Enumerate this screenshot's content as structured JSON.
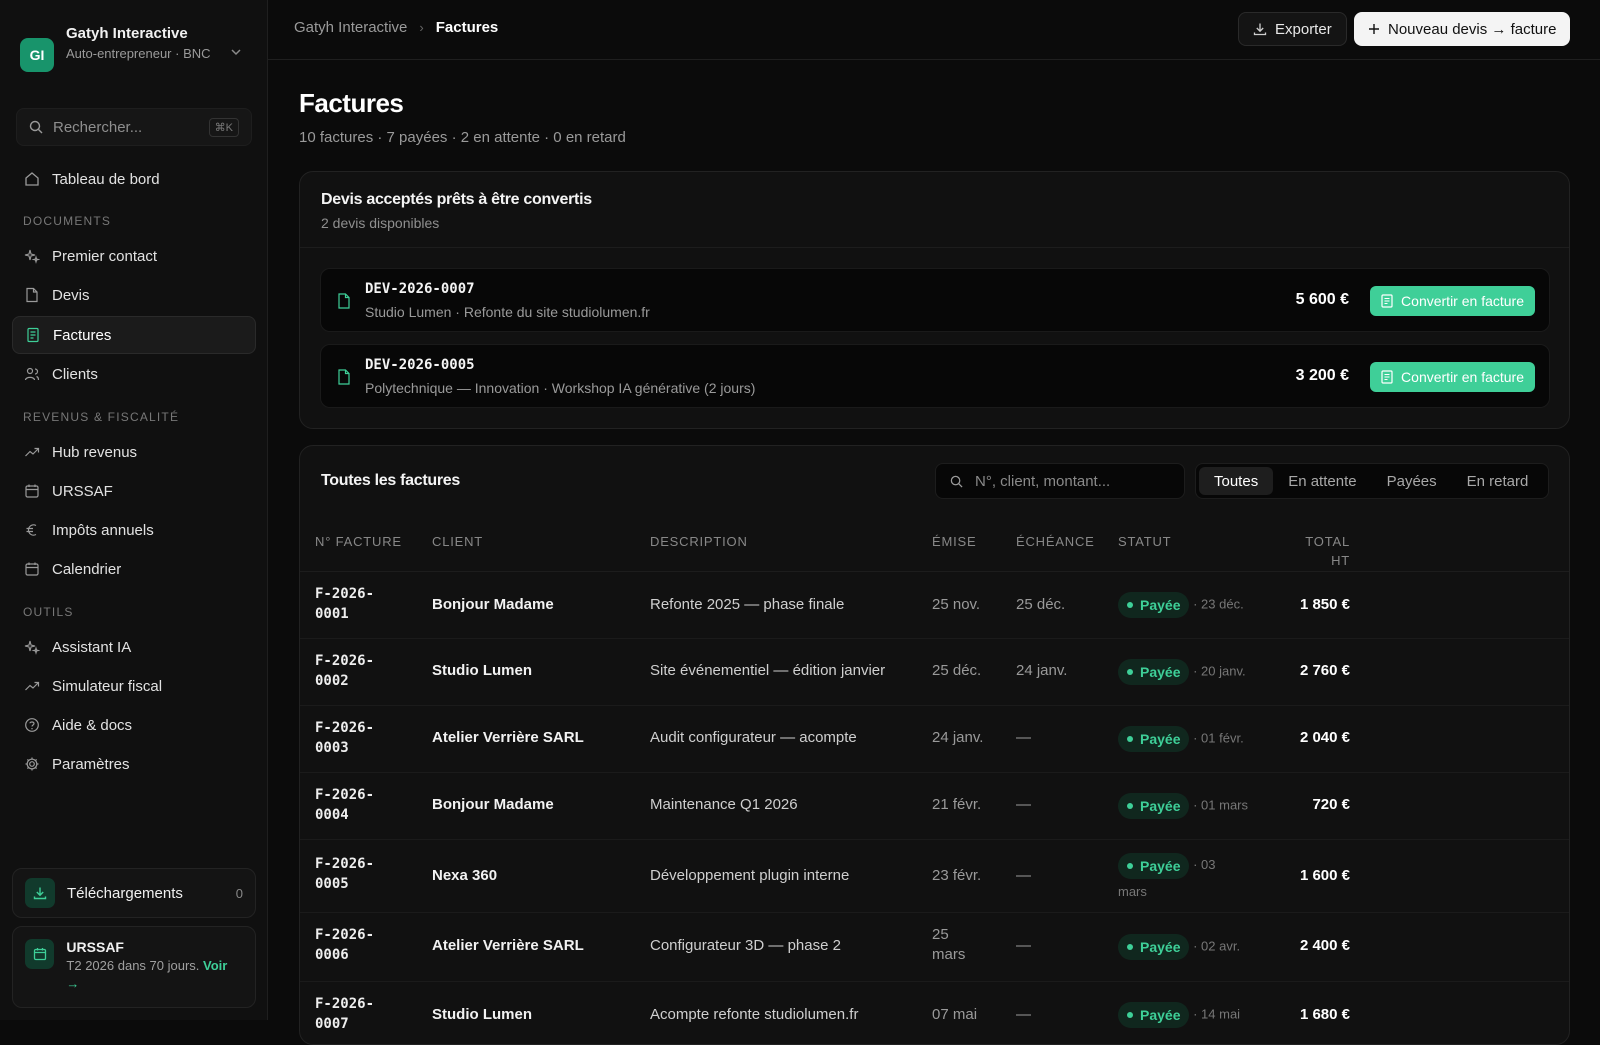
{
  "org": {
    "initials": "GI",
    "name": "Gatyh Interactive",
    "subtitle": "Auto-entrepreneur · BNC"
  },
  "search": {
    "placeholder": "Rechercher...",
    "shortcut": "⌘K"
  },
  "nav": {
    "dashboard": "Tableau de bord",
    "section_documents": "DOCUMENTS",
    "premier_contact": "Premier contact",
    "devis": "Devis",
    "factures": "Factures",
    "clients": "Clients",
    "section_revenus": "REVENUS & FISCALITÉ",
    "hub_revenus": "Hub revenus",
    "urssaf": "URSSAF",
    "impots": "Impôts annuels",
    "calendrier": "Calendrier",
    "section_outils": "OUTILS",
    "assistant": "Assistant IA",
    "simulateur": "Simulateur fiscal",
    "aide": "Aide & docs",
    "parametres": "Paramètres"
  },
  "downloads": {
    "label": "Téléchargements",
    "count": "0"
  },
  "urssaf_card": {
    "title": "URSSAF",
    "text": "T2 2026 dans 70 jours.",
    "link": "Voir →"
  },
  "topbar": {
    "crumb_root": "Gatyh Interactive",
    "crumb_current": "Factures",
    "export_label": "Exporter",
    "new_label": "Nouveau devis → facture"
  },
  "page": {
    "title": "Factures",
    "subtitle": "10 factures · 7 payées · 2 en attente · 0 en retard"
  },
  "devis_panel": {
    "title": "Devis acceptés prêts à être convertis",
    "subtitle": "2 devis disponibles",
    "button_label": "Convertir en facture",
    "items": [
      {
        "number": "DEV-2026-0007",
        "description": "Studio Lumen · Refonte du site studiolumen.fr",
        "amount": "5 600 €"
      },
      {
        "number": "DEV-2026-0005",
        "description": "Polytechnique — Innovation · Workshop IA générative (2 jours)",
        "amount": "3 200 €"
      }
    ]
  },
  "invoices": {
    "title": "Toutes les factures",
    "search_placeholder": "N°, client, montant...",
    "tabs": [
      "Toutes",
      "En attente",
      "Payées",
      "En retard"
    ],
    "columns": {
      "num": "N° FACTURE",
      "client": "CLIENT",
      "desc": "DESCRIPTION",
      "emise": "ÉMISE",
      "echeance": "ÉCHÉANCE",
      "statut": "STATUT",
      "total": "TOTAL HT"
    },
    "rows": [
      {
        "num": "F-2026-0001",
        "client": "Bonjour Madame",
        "desc": "Refonte 2025 — phase finale",
        "emise": "25 nov.",
        "echeance": "25 déc.",
        "status": "Payée",
        "paid": "· 23 déc.",
        "total": "1 850 €"
      },
      {
        "num": "F-2026-0002",
        "client": "Studio Lumen",
        "desc": "Site événementiel — édition janvier",
        "emise": "25 déc.",
        "echeance": "24 janv.",
        "status": "Payée",
        "paid": "· 20 janv.",
        "total": "2 760 €"
      },
      {
        "num": "F-2026-0003",
        "client": "Atelier Verrière SARL",
        "desc": "Audit configurateur — acompte",
        "emise": "24 janv.",
        "echeance": "—",
        "status": "Payée",
        "paid": "· 01 févr.",
        "total": "2 040 €"
      },
      {
        "num": "F-2026-0004",
        "client": "Bonjour Madame",
        "desc": "Maintenance Q1 2026",
        "emise": "21 févr.",
        "echeance": "—",
        "status": "Payée",
        "paid": "· 01 mars",
        "total": "720 €"
      },
      {
        "num": "F-2026-0005",
        "client": "Nexa 360",
        "desc": "Développement plugin interne",
        "emise": "23 févr.",
        "echeance": "—",
        "status": "Payée",
        "paid": "· 03 mars",
        "total": "1 600 €"
      },
      {
        "num": "F-2026-0006",
        "client": "Atelier Verrière SARL",
        "desc": "Configurateur 3D — phase 2",
        "emise": "25 mars",
        "echeance": "—",
        "status": "Payée",
        "paid": "· 02 avr.",
        "total": "2 400 €"
      },
      {
        "num": "F-2026-0007",
        "client": "Studio Lumen",
        "desc": "Acompte refonte studiolumen.fr",
        "emise": "07 mai",
        "echeance": "—",
        "status": "Payée",
        "paid": "· 14 mai",
        "total": "1 680 €"
      }
    ]
  }
}
